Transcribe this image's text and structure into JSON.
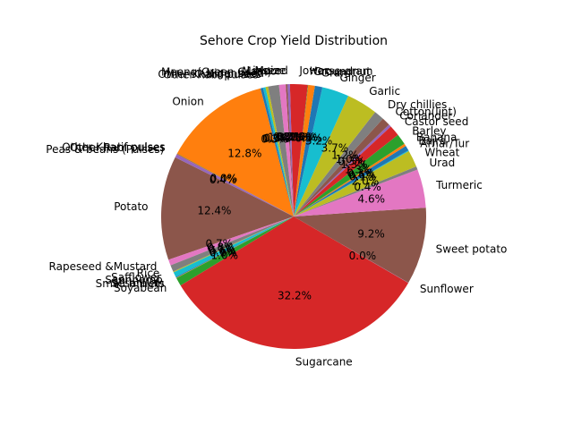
{
  "chart_data": {
    "type": "pie",
    "title": "Sehore Crop Yield Distribution",
    "start_angle_deg": 104.5,
    "direction": "counterclockwise",
    "slices": [
      {
        "label": "Onion",
        "value": 12.8,
        "pct_label": "12.8%",
        "color": "#ff7f0e"
      },
      {
        "label": "Other Kharif pulses",
        "value": 0.05,
        "pct_label": "0.0%",
        "color": "#2ca02c"
      },
      {
        "label": "Other Rabi pulses",
        "value": 0.05,
        "pct_label": "0.0%",
        "color": "#d62728"
      },
      {
        "label": "Peas & beans (Pulses)",
        "value": 0.4,
        "pct_label": "0.4%",
        "color": "#9467bd"
      },
      {
        "label": "Potato",
        "value": 12.4,
        "pct_label": "12.4%",
        "color": "#8c564b"
      },
      {
        "label": "Rapeseed &Mustard",
        "value": 0.7,
        "pct_label": "0.7%",
        "color": "#e377c2"
      },
      {
        "label": "Rice",
        "value": 0.8,
        "pct_label": "0.8%",
        "color": "#7f7f7f"
      },
      {
        "label": "Safflower",
        "value": 0.1,
        "pct_label": "0.1%",
        "color": "#bcbd22"
      },
      {
        "label": "Sannhamp",
        "value": 0.6,
        "pct_label": "0.6%",
        "color": "#17becf"
      },
      {
        "label": "Sesamum",
        "value": 0.1,
        "pct_label": "0.1%",
        "color": "#1f77b4"
      },
      {
        "label": "Small millets",
        "value": 0.05,
        "pct_label": "0.0%",
        "color": "#ff7f0e"
      },
      {
        "label": "Soyabean",
        "value": 1.0,
        "pct_label": "1.0%",
        "color": "#2ca02c"
      },
      {
        "label": "Sugarcane",
        "value": 32.2,
        "pct_label": "32.2%",
        "color": "#d62728"
      },
      {
        "label": "Sunflower",
        "value": 0.02,
        "pct_label": "0.0%",
        "color": "#9467bd"
      },
      {
        "label": "Sweet potato",
        "value": 9.2,
        "pct_label": "9.2%",
        "color": "#8c564b"
      },
      {
        "label": "Turmeric",
        "value": 4.6,
        "pct_label": "4.6%",
        "color": "#e377c2"
      },
      {
        "label": "Urad",
        "value": 0.4,
        "pct_label": "0.4%",
        "color": "#7f7f7f"
      },
      {
        "label": "Wheat",
        "value": 2.0,
        "pct_label": "2.0%",
        "color": "#bcbd22"
      },
      {
        "label": "Arhar/Tur",
        "value": 0.1,
        "pct_label": "0.1%",
        "color": "#17becf"
      },
      {
        "label": "Bajra",
        "value": 0.6,
        "pct_label": "0.6%",
        "color": "#1f77b4"
      },
      {
        "label": "Banana",
        "value": 0.3,
        "pct_label": "0.3%",
        "color": "#ff7f0e"
      },
      {
        "label": "Barley",
        "value": 1.3,
        "pct_label": "1.3%",
        "color": "#2ca02c"
      },
      {
        "label": "Castor seed",
        "value": 1.3,
        "pct_label": "1.3%",
        "color": "#d62728"
      },
      {
        "label": "Coriander",
        "value": 0.3,
        "pct_label": "0.3%",
        "color": "#9467bd"
      },
      {
        "label": "Cotton(lint)",
        "value": 1.0,
        "pct_label": "1.0%",
        "color": "#8c564b"
      },
      {
        "label": "Dry chillies",
        "value": 1.2,
        "pct_label": "1.2%",
        "color": "#7f7f7f"
      },
      {
        "label": "Garlic",
        "value": 3.7,
        "pct_label": "3.7%",
        "color": "#bcbd22"
      },
      {
        "label": "Ginger",
        "value": 3.2,
        "pct_label": "3.2%",
        "color": "#17becf"
      },
      {
        "label": "Gram",
        "value": 0.9,
        "pct_label": "0.9%",
        "color": "#1f77b4"
      },
      {
        "label": "Groundnut",
        "value": 0.8,
        "pct_label": "0.8%",
        "color": "#ff7f0e"
      },
      {
        "label": "Horse-gram",
        "value": 0.05,
        "pct_label": "0.0%",
        "color": "#2ca02c"
      },
      {
        "label": "Jowar",
        "value": 2.1,
        "pct_label": "2.1%",
        "color": "#d62728"
      },
      {
        "label": "Linseed",
        "value": 0.3,
        "pct_label": "0.3%",
        "color": "#9467bd"
      },
      {
        "label": "Maize",
        "value": 0.2,
        "pct_label": "0.2%",
        "color": "#8c564b"
      },
      {
        "label": "Masoor",
        "value": 0.8,
        "pct_label": "0.8%",
        "color": "#e377c2"
      },
      {
        "label": "Moong(Green Gram)",
        "value": 1.3,
        "pct_label": "1.3%",
        "color": "#7f7f7f"
      },
      {
        "label": "Niger seed",
        "value": 0.3,
        "pct_label": "0.3%",
        "color": "#bcbd22"
      },
      {
        "label": "Other Kharif pulses",
        "value": 0.3,
        "pct_label": "0.3%",
        "color": "#17becf"
      },
      {
        "label": "Other Rabi pulses",
        "value": 0.3,
        "pct_label": "0.3%",
        "color": "#1f77b4"
      }
    ]
  }
}
